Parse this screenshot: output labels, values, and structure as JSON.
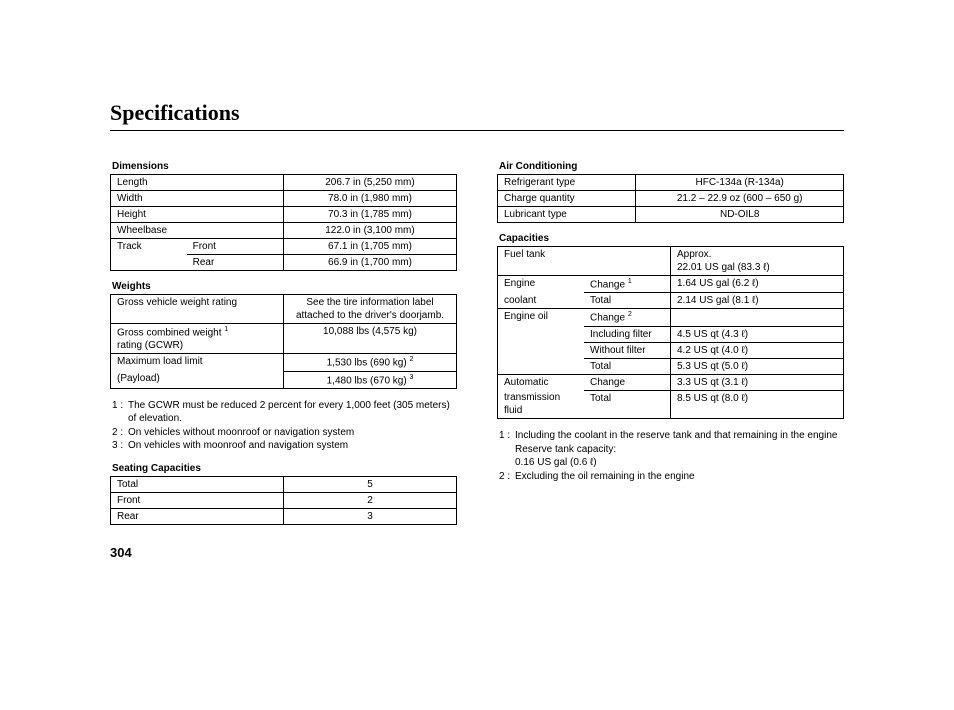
{
  "title": "Specifications",
  "page_number": "304",
  "left": {
    "dimensions": {
      "heading": "Dimensions",
      "rows": [
        {
          "l1": "Length",
          "l2": "",
          "v": "206.7 in (5,250 mm)"
        },
        {
          "l1": "Width",
          "l2": "",
          "v": "78.0 in (1,980 mm)"
        },
        {
          "l1": "Height",
          "l2": "",
          "v": "70.3 in (1,785 mm)"
        },
        {
          "l1": "Wheelbase",
          "l2": "",
          "v": "122.0 in (3,100 mm)"
        },
        {
          "l1": "Track",
          "l2": "Front",
          "v": "67.1 in (1,705 mm)"
        },
        {
          "l1": "",
          "l2": "Rear",
          "v": "66.9 in (1,700 mm)"
        }
      ]
    },
    "weights": {
      "heading": "Weights",
      "rows": [
        {
          "label": "Gross vehicle weight rating",
          "value": "See the tire information label attached to the driver's doorjamb."
        },
        {
          "label_html": "Gross combined weight <sup>1</sup><br>rating (GCWR)",
          "value": "10,088 lbs (4,575 kg)"
        },
        {
          "label": "Maximum load limit",
          "value_html": "1,530 lbs (690 kg) <sup>2</sup>"
        },
        {
          "label": "(Payload)",
          "value_html": "1,480 lbs (670 kg) <sup>3</sup>"
        }
      ]
    },
    "weight_notes": [
      {
        "n": "1 :",
        "t": "The GCWR must be reduced 2 percent for every 1,000 feet (305 meters) of elevation."
      },
      {
        "n": "2 :",
        "t": "On vehicles without moonroof or navigation system"
      },
      {
        "n": "3 :",
        "t": "On vehicles with moonroof and navigation system"
      }
    ],
    "seating": {
      "heading": "Seating Capacities",
      "rows": [
        {
          "l": "Total",
          "v": "5"
        },
        {
          "l": "Front",
          "v": "2"
        },
        {
          "l": "Rear",
          "v": "3"
        }
      ]
    }
  },
  "right": {
    "aircond": {
      "heading": "Air Conditioning",
      "rows": [
        {
          "l": "Refrigerant type",
          "v": "HFC-134a (R-134a)"
        },
        {
          "l": "Charge quantity",
          "v": "21.2 – 22.9 oz (600 – 650 g)"
        },
        {
          "l": "Lubricant type",
          "v": "ND-OIL8"
        }
      ]
    },
    "capacities": {
      "heading": "Capacities",
      "rows": [
        {
          "c1": "Fuel tank",
          "c2": "",
          "v": "Approx.<br>22.01 US gal (83.3 ℓ)"
        },
        {
          "c1": "Engine",
          "c2_html": "Change <sup>1</sup>",
          "v": "1.64 US gal (6.2 ℓ)"
        },
        {
          "c1": "coolant",
          "c2": "Total",
          "v": "2.14 US gal (8.1 ℓ)"
        },
        {
          "c1": "Engine oil",
          "c2_html": "Change <sup>2</sup>",
          "v": "",
          "no_v_border": true
        },
        {
          "c1": "",
          "c2": "Including filter",
          "v": "4.5 US qt (4.3 ℓ)"
        },
        {
          "c1": "",
          "c2": "Without filter",
          "v": "4.2 US qt (4.0 ℓ)"
        },
        {
          "c1": "",
          "c2": "Total",
          "v": "5.3 US qt (5.0 ℓ)"
        },
        {
          "c1": "Automatic",
          "c2": "Change",
          "v": "3.3 US qt (3.1 ℓ)"
        },
        {
          "c1": "transmission<br>fluid",
          "c2": "Total",
          "v": "8.5 US qt (8.0 ℓ)"
        }
      ]
    },
    "cap_notes": [
      {
        "n": "1 :",
        "t": "Including the coolant in the reserve tank and that remaining in the engine",
        "extra": [
          "Reserve tank capacity:",
          "0.16 US gal (0.6 ℓ)"
        ]
      },
      {
        "n": "2 :",
        "t": "Excluding the oil remaining in the engine"
      }
    ]
  }
}
